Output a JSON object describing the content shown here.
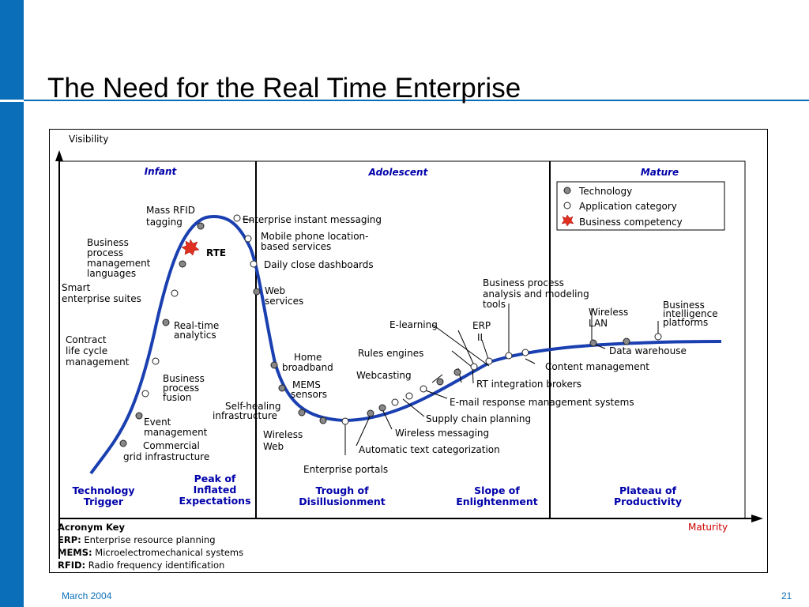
{
  "slide": {
    "title": "The Need for the Real Time Enterprise"
  },
  "footer": {
    "date": "March 2004",
    "page": "21"
  },
  "colors": {
    "brand_blue": "#0a6fb8",
    "stage_label_blue": "#0000aa",
    "curve_blue": "#1a3fb0",
    "technology_dot": "#888888",
    "business_star": "#e03020"
  },
  "hype_cycle": {
    "axis": {
      "y_label": "Visibility",
      "x_label": "Maturity"
    },
    "phases": [
      {
        "label": "Infant"
      },
      {
        "label": "Adolescent"
      },
      {
        "label": "Mature"
      }
    ],
    "legend": {
      "technology": "Technology",
      "application": "Application category",
      "business": "Business competency"
    },
    "stages": [
      {
        "line1": "Technology",
        "line2": "Trigger"
      },
      {
        "line0": "Peak of",
        "line1": "Inflated",
        "line2": "Expectations"
      },
      {
        "line1": "Trough of",
        "line2": "Disillusionment"
      },
      {
        "line1": "Slope of",
        "line2": "Enlightenment"
      },
      {
        "line1": "Plateau of",
        "line2": "Productivity"
      }
    ],
    "acronym_key": {
      "title": "Acronym Key",
      "items": [
        {
          "term": "ERP:",
          "definition": "Enterprise resource planning"
        },
        {
          "term": "MEMS:",
          "definition": "Microelectromechanical systems"
        },
        {
          "term": "RFID:",
          "definition": "Radio frequency identification"
        }
      ]
    },
    "items": [
      {
        "id": "commercial-grid",
        "kind": "technology",
        "lines": [
          "Commercial",
          "grid infrastructure"
        ]
      },
      {
        "id": "event-management",
        "kind": "technology",
        "lines": [
          "Event",
          "management"
        ]
      },
      {
        "id": "business-process-fusion",
        "kind": "application",
        "lines": [
          "Business",
          "process",
          "fusion"
        ]
      },
      {
        "id": "contract-life-cycle",
        "kind": "application",
        "lines": [
          "Contract",
          "life cycle",
          "management"
        ]
      },
      {
        "id": "real-time-analytics",
        "kind": "technology",
        "lines": [
          "Real-time",
          "analytics"
        ]
      },
      {
        "id": "smart-enterprise-suites",
        "kind": "application",
        "lines": [
          "Smart",
          "enterprise suites"
        ]
      },
      {
        "id": "bpm-languages",
        "kind": "technology",
        "lines": [
          "Business",
          "process",
          "management",
          "languages"
        ]
      },
      {
        "id": "rte",
        "kind": "business",
        "lines": [
          "RTE"
        ]
      },
      {
        "id": "mass-rfid",
        "kind": "technology",
        "lines": [
          "Mass RFID",
          "tagging"
        ]
      },
      {
        "id": "enterprise-im",
        "kind": "application",
        "lines": [
          "Enterprise instant messaging"
        ]
      },
      {
        "id": "mobile-location",
        "kind": "application",
        "lines": [
          "Mobile phone location-",
          "based services"
        ]
      },
      {
        "id": "daily-close",
        "kind": "application",
        "lines": [
          "Daily close dashboards"
        ]
      },
      {
        "id": "web-services",
        "kind": "technology",
        "lines": [
          "Web",
          "services"
        ]
      },
      {
        "id": "home-broadband",
        "kind": "technology",
        "lines": [
          "Home",
          "broadband"
        ]
      },
      {
        "id": "mems-sensors",
        "kind": "technology",
        "lines": [
          "MEMS",
          "sensors"
        ]
      },
      {
        "id": "self-healing",
        "kind": "technology",
        "lines": [
          "Self-healing",
          "infrastructure"
        ]
      },
      {
        "id": "wireless-web",
        "kind": "technology",
        "lines": [
          "Wireless",
          "Web"
        ]
      },
      {
        "id": "enterprise-portals",
        "kind": "application",
        "lines": [
          "Enterprise portals"
        ]
      },
      {
        "id": "auto-text-cat",
        "kind": "technology",
        "lines": [
          "Automatic text categorization"
        ]
      },
      {
        "id": "wireless-messaging",
        "kind": "technology",
        "lines": [
          "Wireless messaging"
        ]
      },
      {
        "id": "supply-chain",
        "kind": "application",
        "lines": [
          "Supply chain planning"
        ]
      },
      {
        "id": "webcasting",
        "kind": "application",
        "lines": [
          "Webcasting"
        ]
      },
      {
        "id": "email-response",
        "kind": "application",
        "lines": [
          "E-mail response management systems"
        ]
      },
      {
        "id": "rules-engines",
        "kind": "technology",
        "lines": [
          "Rules engines"
        ]
      },
      {
        "id": "rt-integration",
        "kind": "technology",
        "lines": [
          "RT integration brokers"
        ]
      },
      {
        "id": "e-learning",
        "kind": "application",
        "lines": [
          "E-learning"
        ]
      },
      {
        "id": "erp-ii",
        "kind": "application",
        "lines": [
          "ERP",
          "II"
        ]
      },
      {
        "id": "bpam-tools",
        "kind": "application",
        "lines": [
          "Business process",
          "analysis and modeling",
          "tools"
        ]
      },
      {
        "id": "content-management",
        "kind": "application",
        "lines": [
          "Content management"
        ]
      },
      {
        "id": "wireless-lan",
        "kind": "technology",
        "lines": [
          "Wireless",
          "LAN"
        ]
      },
      {
        "id": "data-warehouse",
        "kind": "technology",
        "lines": [
          "Data warehouse"
        ]
      },
      {
        "id": "bi-platforms",
        "kind": "application",
        "lines": [
          "Business",
          "intelligence",
          "platforms"
        ]
      }
    ]
  }
}
